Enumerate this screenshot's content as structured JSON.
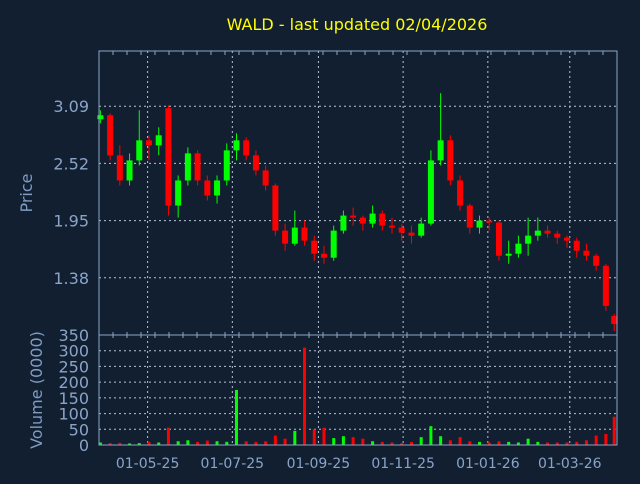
{
  "chart_data": [
    {
      "type": "candlestick",
      "title": "WALD - last updated 02/04/2026",
      "ylabel": "Price",
      "ylim": [
        0.81,
        3.64
      ],
      "yticks": [
        "1.38",
        "1.95",
        "2.52",
        "3.09"
      ],
      "xticks": [
        {
          "label": "01-05-25",
          "date": "2025-05-01"
        },
        {
          "label": "01-07-25",
          "date": "2025-07-01"
        },
        {
          "label": "01-09-25",
          "date": "2025-09-01"
        },
        {
          "label": "01-11-25",
          "date": "2025-11-01"
        },
        {
          "label": "01-01-26",
          "date": "2026-01-01"
        },
        {
          "label": "01-03-26",
          "date": "2026-03-01"
        }
      ],
      "xlim": [
        "2025-03-27",
        "2026-04-04"
      ],
      "grid": true,
      "colors": {
        "up": "#00ff00",
        "down": "#ff0000",
        "title": "#ffff00",
        "axis": "#8aa4c8",
        "background": "#111f31"
      },
      "candles": [
        [
          "2025-03-28",
          2.96,
          3.05,
          2.92,
          3.0
        ],
        [
          "2025-04-04",
          3.0,
          3.02,
          2.55,
          2.6
        ],
        [
          "2025-04-11",
          2.6,
          2.7,
          2.3,
          2.35
        ],
        [
          "2025-04-18",
          2.35,
          2.62,
          2.3,
          2.55
        ],
        [
          "2025-04-25",
          2.55,
          3.05,
          2.5,
          2.75
        ],
        [
          "2025-05-02",
          2.75,
          2.8,
          2.55,
          2.7
        ],
        [
          "2025-05-09",
          2.7,
          2.88,
          2.6,
          2.8
        ],
        [
          "2025-05-16",
          3.07,
          3.1,
          2.0,
          2.1
        ],
        [
          "2025-05-23",
          2.1,
          2.4,
          1.98,
          2.35
        ],
        [
          "2025-05-30",
          2.35,
          2.68,
          2.3,
          2.62
        ],
        [
          "2025-06-06",
          2.62,
          2.65,
          2.3,
          2.35
        ],
        [
          "2025-06-13",
          2.35,
          2.4,
          2.15,
          2.2
        ],
        [
          "2025-06-20",
          2.2,
          2.4,
          2.12,
          2.35
        ],
        [
          "2025-06-27",
          2.35,
          2.72,
          2.3,
          2.65
        ],
        [
          "2025-07-04",
          2.65,
          2.82,
          2.55,
          2.75
        ],
        [
          "2025-07-11",
          2.75,
          2.78,
          2.55,
          2.6
        ],
        [
          "2025-07-18",
          2.6,
          2.65,
          2.4,
          2.45
        ],
        [
          "2025-07-25",
          2.45,
          2.5,
          2.25,
          2.3
        ],
        [
          "2025-08-01",
          2.3,
          2.32,
          1.8,
          1.85
        ],
        [
          "2025-08-08",
          1.85,
          1.92,
          1.65,
          1.72
        ],
        [
          "2025-08-15",
          1.72,
          2.05,
          1.7,
          1.88
        ],
        [
          "2025-08-22",
          1.88,
          1.95,
          1.7,
          1.75
        ],
        [
          "2025-08-29",
          1.75,
          1.8,
          1.55,
          1.62
        ],
        [
          "2025-09-05",
          1.62,
          1.7,
          1.52,
          1.58
        ],
        [
          "2025-09-12",
          1.58,
          1.9,
          1.55,
          1.85
        ],
        [
          "2025-09-19",
          1.85,
          2.05,
          1.82,
          2.0
        ],
        [
          "2025-09-26",
          2.0,
          2.08,
          1.9,
          1.98
        ],
        [
          "2025-10-03",
          1.98,
          2.0,
          1.85,
          1.92
        ],
        [
          "2025-10-10",
          1.92,
          2.1,
          1.88,
          2.02
        ],
        [
          "2025-10-17",
          2.02,
          2.05,
          1.85,
          1.9
        ],
        [
          "2025-10-24",
          1.9,
          1.98,
          1.82,
          1.88
        ],
        [
          "2025-10-31",
          1.88,
          1.92,
          1.75,
          1.83
        ],
        [
          "2025-11-07",
          1.83,
          1.9,
          1.72,
          1.8
        ],
        [
          "2025-11-14",
          1.8,
          1.98,
          1.78,
          1.92
        ],
        [
          "2025-11-21",
          1.92,
          2.65,
          1.9,
          2.55
        ],
        [
          "2025-11-28",
          2.55,
          3.22,
          2.5,
          2.75
        ],
        [
          "2025-12-05",
          2.75,
          2.8,
          2.3,
          2.35
        ],
        [
          "2025-12-12",
          2.35,
          2.4,
          2.05,
          2.1
        ],
        [
          "2025-12-19",
          2.1,
          2.12,
          1.82,
          1.88
        ],
        [
          "2025-12-26",
          1.88,
          2.0,
          1.82,
          1.95
        ],
        [
          "2026-01-02",
          1.95,
          1.98,
          1.85,
          1.93
        ],
        [
          "2026-01-09",
          1.93,
          1.95,
          1.55,
          1.6
        ],
        [
          "2026-01-16",
          1.6,
          1.75,
          1.52,
          1.62
        ],
        [
          "2026-01-23",
          1.62,
          1.8,
          1.58,
          1.72
        ],
        [
          "2026-01-30",
          1.72,
          1.98,
          1.6,
          1.8
        ],
        [
          "2026-02-06",
          1.8,
          1.98,
          1.75,
          1.85
        ],
        [
          "2026-02-13",
          1.85,
          1.9,
          1.78,
          1.82
        ],
        [
          "2026-02-20",
          1.82,
          1.85,
          1.72,
          1.78
        ],
        [
          "2026-02-27",
          1.78,
          1.8,
          1.68,
          1.75
        ],
        [
          "2026-03-06",
          1.75,
          1.78,
          1.58,
          1.65
        ],
        [
          "2026-03-13",
          1.65,
          1.72,
          1.55,
          1.6
        ],
        [
          "2026-03-20",
          1.6,
          1.62,
          1.45,
          1.5
        ],
        [
          "2026-03-27",
          1.5,
          1.52,
          1.05,
          1.1
        ],
        [
          "2026-04-02",
          1.0,
          1.02,
          0.85,
          0.92
        ]
      ]
    },
    {
      "type": "bar",
      "ylabel": "Volume (0000)",
      "ylim": [
        0,
        350
      ],
      "yticks": [
        "0",
        "50",
        "100",
        "150",
        "200",
        "250",
        "300",
        "350"
      ],
      "volumes": [
        8,
        6,
        7,
        5,
        6,
        10,
        8,
        55,
        12,
        15,
        10,
        14,
        12,
        10,
        175,
        12,
        10,
        12,
        30,
        20,
        45,
        310,
        50,
        55,
        22,
        28,
        25,
        20,
        12,
        10,
        8,
        6,
        10,
        25,
        60,
        28,
        15,
        25,
        12,
        10,
        8,
        12,
        10,
        8,
        20,
        10,
        8,
        8,
        8,
        10,
        15,
        30,
        35,
        90
      ]
    }
  ]
}
